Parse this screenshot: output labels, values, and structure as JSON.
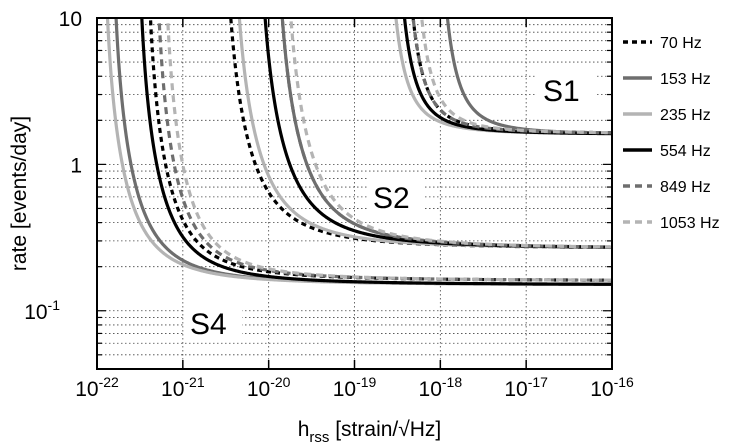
{
  "chart_data": {
    "type": "line",
    "title": "",
    "xlabel": {
      "base": "h",
      "sub": "rss",
      "rest": " [strain/√Hz]"
    },
    "ylabel": "rate [events/day]",
    "xscale": "log",
    "yscale": "log",
    "xlim_exp": [
      -22,
      -16
    ],
    "ylim": [
      0.04,
      10
    ],
    "grid": true,
    "legend_placement": "right",
    "x_ticks": [
      {
        "base": "10",
        "exp": "-22",
        "v": -22
      },
      {
        "base": "10",
        "exp": "-21",
        "v": -21
      },
      {
        "base": "10",
        "exp": "-20",
        "v": -20
      },
      {
        "base": "10",
        "exp": "-19",
        "v": -19
      },
      {
        "base": "10",
        "exp": "-18",
        "v": -18
      },
      {
        "base": "10",
        "exp": "-17",
        "v": -17
      },
      {
        "base": "10",
        "exp": "-16",
        "v": -16
      }
    ],
    "y_ticks": [
      {
        "base": "10",
        "exp": "",
        "v": 10
      },
      {
        "base": "1",
        "exp": "",
        "v": 1
      },
      {
        "base": "10",
        "exp": "-1",
        "v": 0.1
      }
    ],
    "annotations": [
      {
        "text": "S1",
        "near_x_exp": -17.6,
        "near_y": 3.6
      },
      {
        "text": "S2",
        "near_x_exp": -19.2,
        "near_y": 0.65
      },
      {
        "text": "S4",
        "near_x_exp": -21.1,
        "near_y": 0.09
      }
    ],
    "series": [
      {
        "name": "70 Hz",
        "color": "#000000",
        "dash": "dotted",
        "runs": [
          {
            "run": "S1",
            "threshold_exp": -18.45,
            "plateau": 1.62,
            "shape": 0.9
          },
          {
            "run": "S2",
            "threshold_exp": -20.55,
            "plateau": 0.265,
            "shape": 1.0
          },
          {
            "run": "S4",
            "threshold_exp": -21.45,
            "plateau": 0.16,
            "shape": 0.5
          }
        ]
      },
      {
        "name": "153 Hz",
        "color": "#6e6e6e",
        "dash": "solid",
        "runs": [
          {
            "run": "S1",
            "threshold_exp": -18.05,
            "plateau": 1.6,
            "shape": 0.9
          },
          {
            "run": "S2",
            "threshold_exp": -19.95,
            "plateau": 0.265,
            "shape": 1.0
          },
          {
            "run": "S4",
            "threshold_exp": -21.85,
            "plateau": 0.15,
            "shape": 0.5
          }
        ]
      },
      {
        "name": "235 Hz",
        "color": "#b4b4b4",
        "dash": "solid",
        "runs": [
          {
            "run": "S1",
            "threshold_exp": -18.65,
            "plateau": 1.6,
            "shape": 0.9
          },
          {
            "run": "S2",
            "threshold_exp": -20.45,
            "plateau": 0.265,
            "shape": 1.0
          },
          {
            "run": "S4",
            "threshold_exp": -21.95,
            "plateau": 0.15,
            "shape": 0.5
          }
        ]
      },
      {
        "name": "554 Hz",
        "color": "#000000",
        "dash": "solid",
        "runs": [
          {
            "run": "S1",
            "threshold_exp": -18.55,
            "plateau": 1.6,
            "shape": 0.9
          },
          {
            "run": "S2",
            "threshold_exp": -20.15,
            "plateau": 0.265,
            "shape": 1.0
          },
          {
            "run": "S4",
            "threshold_exp": -21.55,
            "plateau": 0.15,
            "shape": 0.5
          }
        ]
      },
      {
        "name": "849 Hz",
        "color": "#6e6e6e",
        "dash": "dashed",
        "runs": [
          {
            "run": "S1",
            "threshold_exp": -18.45,
            "plateau": 1.62,
            "shape": 0.9
          },
          {
            "run": "S2",
            "threshold_exp": -19.95,
            "plateau": 0.265,
            "shape": 1.0
          },
          {
            "run": "S4",
            "threshold_exp": -21.35,
            "plateau": 0.16,
            "shape": 0.5
          }
        ]
      },
      {
        "name": "1053 Hz",
        "color": "#b4b4b4",
        "dash": "dashed",
        "runs": [
          {
            "run": "S1",
            "threshold_exp": -18.35,
            "plateau": 1.62,
            "shape": 0.9
          },
          {
            "run": "S2",
            "threshold_exp": -19.85,
            "plateau": 0.265,
            "shape": 1.0
          },
          {
            "run": "S4",
            "threshold_exp": -21.25,
            "plateau": 0.16,
            "shape": 0.5
          }
        ]
      }
    ]
  }
}
